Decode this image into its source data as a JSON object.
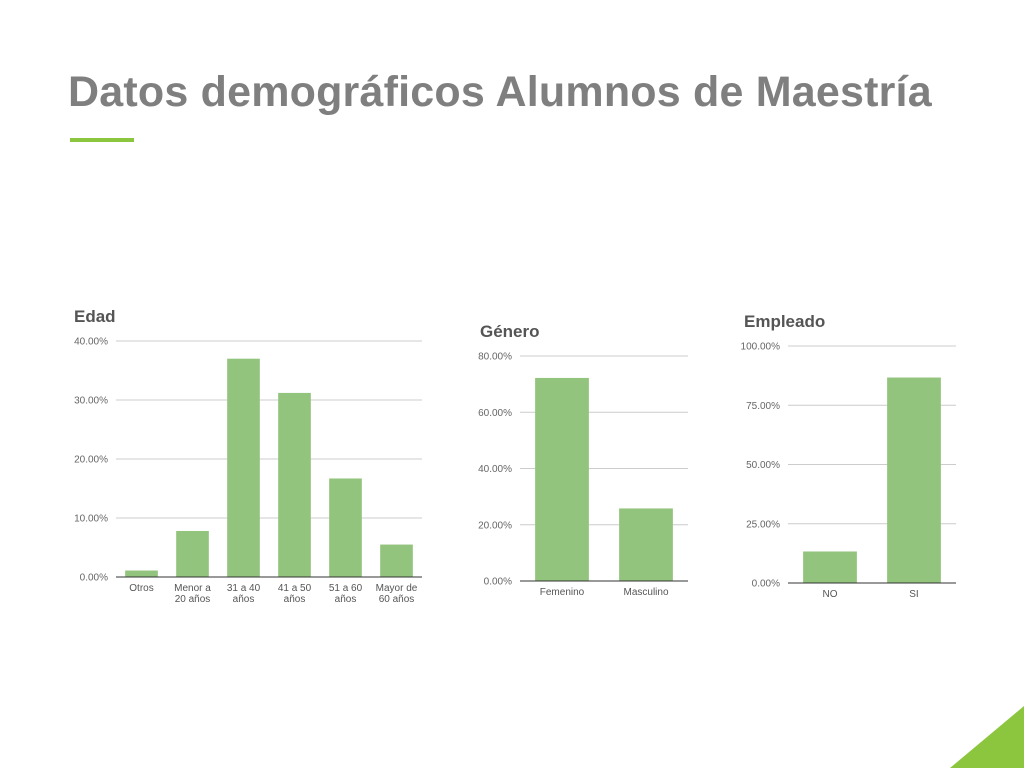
{
  "slide": {
    "title": "Datos demográficos Alumnos de Maestría",
    "accent_color": "#8cc63f",
    "title_color": "#7f7f7f"
  },
  "chart_data": [
    {
      "type": "bar",
      "title": "Edad",
      "categories": [
        [
          "Otros"
        ],
        [
          "Menor a",
          "20 años"
        ],
        [
          "31 a 40",
          "años"
        ],
        [
          "41 a 50",
          "años"
        ],
        [
          "51 a 60",
          "años"
        ],
        [
          "Mayor de",
          "60 años"
        ]
      ],
      "values": [
        1.1,
        7.8,
        37.0,
        31.2,
        16.7,
        5.5
      ],
      "ylim": [
        0,
        40
      ],
      "yticks": [
        0,
        10,
        20,
        30,
        40
      ],
      "ytick_labels": [
        "0.00%",
        "10.00%",
        "20.00%",
        "30.00%",
        "40.00%"
      ],
      "xlabel": "",
      "ylabel": "",
      "grid": true,
      "bar_color": "#93c47d"
    },
    {
      "type": "bar",
      "title": "Género",
      "categories": [
        [
          "Femenino"
        ],
        [
          "Masculino"
        ]
      ],
      "values": [
        72.2,
        25.8
      ],
      "ylim": [
        0,
        80
      ],
      "yticks": [
        0,
        20,
        40,
        60,
        80
      ],
      "ytick_labels": [
        "0.00%",
        "20.00%",
        "40.00%",
        "60.00%",
        "80.00%"
      ],
      "xlabel": "",
      "ylabel": "",
      "grid": true,
      "bar_color": "#93c47d"
    },
    {
      "type": "bar",
      "title": "Empleado",
      "categories": [
        [
          "NO"
        ],
        [
          "SI"
        ]
      ],
      "values": [
        13.3,
        86.7
      ],
      "ylim": [
        0,
        100
      ],
      "yticks": [
        0,
        25,
        50,
        75,
        100
      ],
      "ytick_labels": [
        "0.00%",
        "25.00%",
        "50.00%",
        "75.00%",
        "100.00%"
      ],
      "xlabel": "",
      "ylabel": "",
      "grid": true,
      "bar_color": "#93c47d"
    }
  ]
}
